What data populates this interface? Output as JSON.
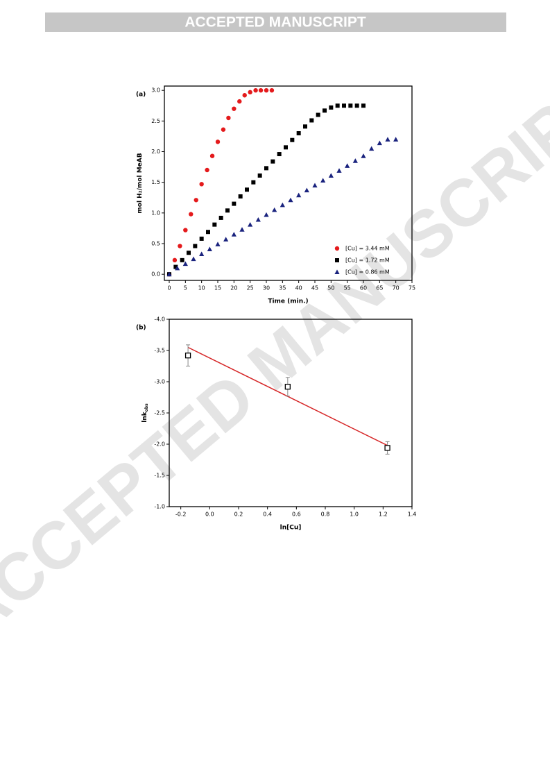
{
  "header": {
    "title": "ACCEPTED MANUSCRIPT"
  },
  "watermark": "ACCEPTED MANUSCRIPT",
  "chart_data": [
    {
      "type": "scatter",
      "title": "(a)",
      "xlabel": "Time (min.)",
      "ylabel": "mol H₂/mol MeAB",
      "xlim": [
        -1.5,
        75
      ],
      "ylim": [
        -0.1,
        3.07
      ],
      "xticks": [
        0,
        5,
        10,
        15,
        20,
        25,
        30,
        35,
        40,
        45,
        50,
        55,
        60,
        65,
        70,
        75
      ],
      "yticks": [
        {
          "value": 0,
          "label": "0.0"
        },
        0.5,
        {
          "value": 1,
          "label": "1.0"
        },
        1.5,
        {
          "value": 2,
          "label": "2.0"
        },
        2.5,
        {
          "value": 3,
          "label": "3.0"
        }
      ],
      "legend": "lower right",
      "series": [
        {
          "name": "[Cu] = 3.44 mM",
          "color": "#e41a1c",
          "marker": "circle",
          "x": [
            0,
            1.7,
            3.3,
            5,
            6.7,
            8.3,
            10,
            11.7,
            13.3,
            15,
            16.7,
            18.3,
            20,
            21.7,
            23.3,
            25,
            26.7,
            28.3,
            30,
            31.7
          ],
          "values": [
            0,
            0.23,
            0.46,
            0.72,
            0.98,
            1.21,
            1.47,
            1.7,
            1.93,
            2.16,
            2.36,
            2.55,
            2.7,
            2.82,
            2.92,
            2.97,
            3,
            3,
            3,
            3
          ]
        },
        {
          "name": "[Cu] = 1.72 mM",
          "color": "#000000",
          "marker": "square",
          "x": [
            0,
            2,
            4,
            6,
            8,
            10,
            12,
            14,
            16,
            18,
            20,
            22,
            24,
            26,
            28,
            30,
            32,
            34,
            36,
            38,
            40,
            42,
            44,
            46,
            48,
            50,
            52,
            54,
            56,
            58,
            60
          ],
          "values": [
            0,
            0.12,
            0.23,
            0.35,
            0.46,
            0.58,
            0.69,
            0.81,
            0.92,
            1.04,
            1.15,
            1.27,
            1.38,
            1.5,
            1.61,
            1.73,
            1.84,
            1.96,
            2.07,
            2.19,
            2.3,
            2.41,
            2.51,
            2.6,
            2.67,
            2.72,
            2.75,
            2.75,
            2.75,
            2.75,
            2.75
          ]
        },
        {
          "name": "[Cu] = 0.86 mM",
          "color": "#1a237e",
          "marker": "triangle",
          "x": [
            0,
            2.5,
            5,
            7.5,
            10,
            12.5,
            15,
            17.5,
            20,
            22.5,
            25,
            27.5,
            30,
            32.5,
            35,
            37.5,
            40,
            42.5,
            45,
            47.5,
            50,
            52.5,
            55,
            57.5,
            60,
            62.5,
            65,
            67.5,
            70
          ],
          "values": [
            0,
            0.1,
            0.17,
            0.25,
            0.33,
            0.41,
            0.49,
            0.57,
            0.65,
            0.73,
            0.81,
            0.89,
            0.97,
            1.05,
            1.13,
            1.21,
            1.29,
            1.37,
            1.45,
            1.53,
            1.61,
            1.69,
            1.77,
            1.85,
            1.93,
            2.05,
            2.14,
            2.2,
            2.2
          ]
        }
      ]
    },
    {
      "type": "scatter",
      "title": "(b)",
      "xlabel": "ln[Cu]",
      "ylabel": "lnk",
      "ylabel_subscript": "obs",
      "xlim": [
        -0.28,
        1.4
      ],
      "ylim": [
        -1,
        -4
      ],
      "xticks": [
        -0.2,
        {
          "value": 0,
          "label": "0.0"
        },
        0.2,
        0.4,
        0.6,
        0.8,
        {
          "value": 1,
          "label": "1.0"
        },
        1.2,
        1.4
      ],
      "yticks": [
        {
          "value": -4,
          "label": "-4.0"
        },
        -3.5,
        {
          "value": -3,
          "label": "-3.0"
        },
        -2.5,
        {
          "value": -2,
          "label": "-2.0"
        },
        -1.5,
        {
          "value": -1,
          "label": "-1.0"
        }
      ],
      "series": [
        {
          "color": "#000000",
          "marker": "open-square",
          "x": [
            -0.15,
            0.54,
            1.23
          ],
          "values": [
            -3.42,
            -2.92,
            -1.94
          ],
          "errors": [
            0.17,
            0.15,
            0.1
          ]
        }
      ],
      "fit": {
        "color": "#d62728",
        "x": [
          -0.15,
          1.23
        ],
        "values": [
          -3.55,
          -1.98
        ]
      }
    }
  ]
}
